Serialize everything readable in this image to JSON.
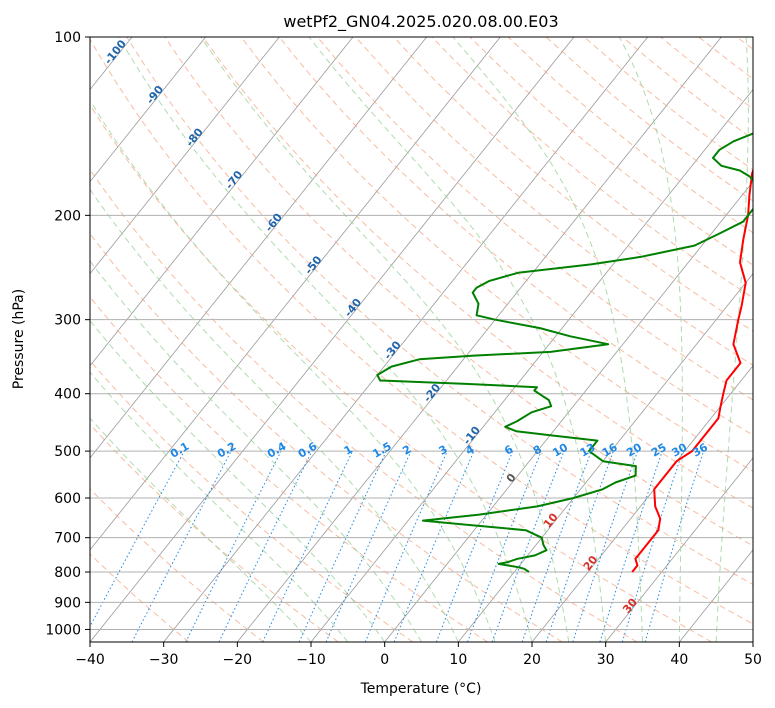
{
  "chart_data": {
    "type": "line",
    "title": "wetPf2_GN04.2025.020.08.00.E03",
    "xlabel": "Temperature (°C)",
    "ylabel": "Pressure (hPa)",
    "xlim": [
      -40,
      50
    ],
    "ylim": [
      1050,
      100
    ],
    "yscale": "log",
    "grid": true,
    "x_ticks": [
      "−40",
      "−30",
      "−20",
      "−10",
      "0",
      "10",
      "20",
      "30",
      "40",
      "50"
    ],
    "y_ticks": [
      "100",
      "200",
      "300",
      "400",
      "500",
      "600",
      "700",
      "800",
      "900",
      "1000"
    ],
    "series": [
      {
        "role": "temperature",
        "color": "#ff0000",
        "points": [
          [
            26,
            800
          ],
          [
            26,
            780
          ],
          [
            25,
            760
          ],
          [
            25,
            740
          ],
          [
            25,
            700
          ],
          [
            25,
            680
          ],
          [
            24,
            650
          ],
          [
            22,
            620
          ],
          [
            20,
            580
          ],
          [
            20,
            550
          ],
          [
            20,
            520
          ],
          [
            21,
            500
          ],
          [
            21,
            470
          ],
          [
            21,
            440
          ],
          [
            20,
            420
          ],
          [
            19,
            400
          ],
          [
            18,
            380
          ],
          [
            18,
            355
          ],
          [
            15,
            330
          ],
          [
            13,
            300
          ],
          [
            12,
            285
          ],
          [
            10,
            260
          ],
          [
            7,
            240
          ],
          [
            5,
            220
          ],
          [
            3,
            200
          ],
          [
            1,
            185
          ],
          [
            -1,
            170
          ],
          [
            -2,
            160
          ],
          [
            -2,
            150
          ],
          [
            -3,
            140
          ],
          [
            -3,
            130
          ],
          [
            -4,
            120
          ],
          [
            -4,
            112
          ],
          [
            -4,
            106
          ],
          [
            -3,
            100
          ]
        ]
      },
      {
        "role": "dewpoint",
        "color": "#008000",
        "points": [
          [
            12,
            800
          ],
          [
            11,
            790
          ],
          [
            10,
            785
          ],
          [
            7,
            775
          ],
          [
            8,
            770
          ],
          [
            9,
            760
          ],
          [
            11,
            750
          ],
          [
            12,
            735
          ],
          [
            11,
            720
          ],
          [
            10,
            700
          ],
          [
            7,
            680
          ],
          [
            -2,
            665
          ],
          [
            -8,
            655
          ],
          [
            -1,
            640
          ],
          [
            6,
            620
          ],
          [
            10,
            600
          ],
          [
            13,
            580
          ],
          [
            14,
            565
          ],
          [
            16,
            550
          ],
          [
            15,
            530
          ],
          [
            10,
            520
          ],
          [
            7,
            500
          ],
          [
            7,
            480
          ],
          [
            0,
            470
          ],
          [
            -5,
            463
          ],
          [
            -7,
            455
          ],
          [
            -6,
            445
          ],
          [
            -5,
            430
          ],
          [
            -3,
            420
          ],
          [
            -4,
            410
          ],
          [
            -5,
            405
          ],
          [
            -7,
            395
          ],
          [
            -7,
            390
          ],
          [
            -17,
            385
          ],
          [
            -29,
            380
          ],
          [
            -30,
            372
          ],
          [
            -29,
            360
          ],
          [
            -26,
            350
          ],
          [
            -19,
            345
          ],
          [
            -9,
            340
          ],
          [
            -2,
            330
          ],
          [
            -8,
            320
          ],
          [
            -13,
            310
          ],
          [
            -20,
            300
          ],
          [
            -23,
            295
          ],
          [
            -24,
            282
          ],
          [
            -26,
            270
          ],
          [
            -26,
            265
          ],
          [
            -25,
            258
          ],
          [
            -22,
            250
          ],
          [
            -13,
            242
          ],
          [
            -7,
            235
          ],
          [
            -1,
            225
          ],
          [
            1,
            215
          ],
          [
            3,
            205
          ],
          [
            3,
            195
          ],
          [
            2,
            185
          ],
          [
            1,
            178
          ],
          [
            -1,
            172
          ],
          [
            -3,
            168
          ],
          [
            -6,
            165
          ],
          [
            -8,
            160
          ],
          [
            -8,
            155
          ],
          [
            -7,
            150
          ],
          [
            -5,
            145
          ],
          [
            -3,
            140
          ],
          [
            -2,
            130
          ],
          [
            -2,
            122
          ],
          [
            -3,
            115
          ],
          [
            -4,
            105
          ],
          [
            -4,
            100
          ]
        ]
      }
    ],
    "dry_adiabat_labels": [
      "-100",
      "-90",
      "-80",
      "-70",
      "-60",
      "-50",
      "-40",
      "-30",
      "-20",
      "-10",
      "0",
      "10",
      "20",
      "30",
      "40"
    ],
    "mixing_ratio_labels": [
      "0.1",
      "0.2",
      "0.4",
      "0.6",
      "1",
      "1.5",
      "2",
      "3",
      "4",
      "6",
      "8",
      "10",
      "13",
      "16",
      "20",
      "25",
      "30",
      "36"
    ],
    "colors": {
      "dry_adiabat": "#f4a582",
      "moist_adiabat": "#9bd29b",
      "mixing_ratio": "#1e88e5",
      "isotherm": "#999999",
      "dry_label": "#2166ac",
      "warm_label": "#d73027"
    }
  }
}
